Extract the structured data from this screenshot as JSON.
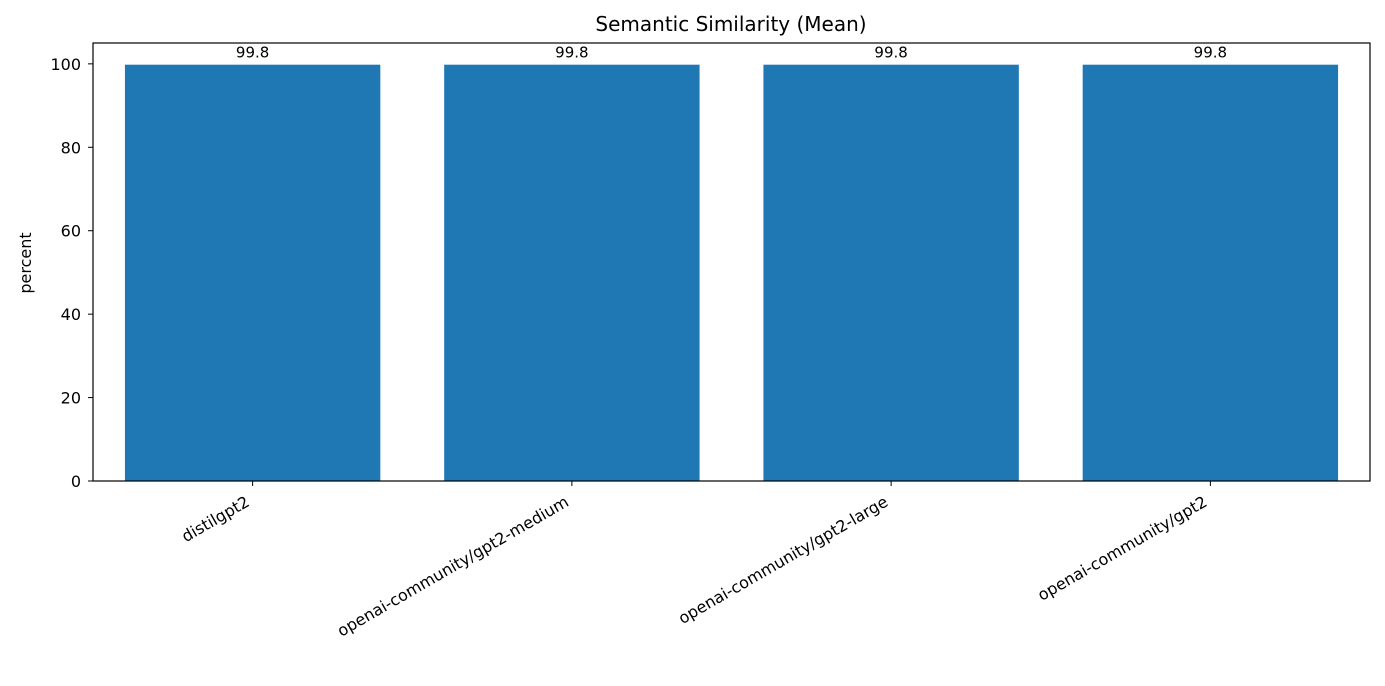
{
  "chart_data": {
    "type": "bar",
    "title": "Semantic Similarity (Mean)",
    "xlabel": "",
    "ylabel": "percent",
    "categories": [
      "distilgpt2",
      "openai-community/gpt2-medium",
      "openai-community/gpt2-large",
      "openai-community/gpt2"
    ],
    "values": [
      99.8,
      99.8,
      99.8,
      99.8
    ],
    "value_labels": [
      "99.8",
      "99.8",
      "99.8",
      "99.8"
    ],
    "ylim": [
      0,
      105
    ],
    "yticks": [
      0,
      20,
      40,
      60,
      80,
      100
    ],
    "grid": false,
    "bar_color": "#1f77b4"
  }
}
